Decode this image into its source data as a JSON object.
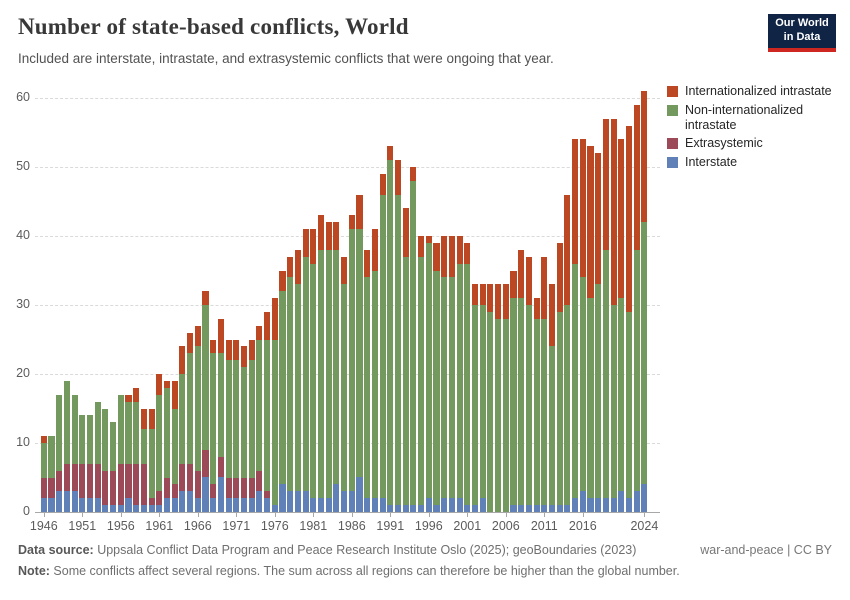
{
  "header": {
    "title": "Number of state-based conflicts, World",
    "subtitle": "Included are interstate, intrastate, and extrasystemic conflicts that were ongoing that year."
  },
  "logo": {
    "line1": "Our World",
    "line2": "in Data",
    "bg": "#102446",
    "accent": "#CE2620"
  },
  "legend": {
    "items": [
      {
        "label": "Internationalized intrastate",
        "color": "#BC4823"
      },
      {
        "label": "Non-internationalized intrastate",
        "color": "#74995F"
      },
      {
        "label": "Extrasystemic",
        "color": "#9C4A57"
      },
      {
        "label": "Interstate",
        "color": "#6080B8"
      }
    ]
  },
  "chart_data": {
    "type": "bar",
    "stacked": true,
    "title": "Number of state-based conflicts, World",
    "xlabel": "",
    "ylabel": "",
    "ylim": [
      0,
      60
    ],
    "yticks": [
      0,
      10,
      20,
      30,
      40,
      50,
      60
    ],
    "grid": "horizontal-dashed",
    "legend_position": "right",
    "xticks": [
      1946,
      1951,
      1956,
      1961,
      1966,
      1971,
      1976,
      1981,
      1986,
      1991,
      1996,
      2001,
      2006,
      2011,
      2016,
      2024
    ],
    "x": [
      1946,
      1947,
      1948,
      1949,
      1950,
      1951,
      1952,
      1953,
      1954,
      1955,
      1956,
      1957,
      1958,
      1959,
      1960,
      1961,
      1962,
      1963,
      1964,
      1965,
      1966,
      1967,
      1968,
      1969,
      1970,
      1971,
      1972,
      1973,
      1974,
      1975,
      1976,
      1977,
      1978,
      1979,
      1980,
      1981,
      1982,
      1983,
      1984,
      1985,
      1986,
      1987,
      1988,
      1989,
      1990,
      1991,
      1992,
      1993,
      1994,
      1995,
      1996,
      1997,
      1998,
      1999,
      2000,
      2001,
      2002,
      2003,
      2004,
      2005,
      2006,
      2007,
      2008,
      2009,
      2010,
      2011,
      2012,
      2013,
      2014,
      2015,
      2016,
      2017,
      2018,
      2019,
      2020,
      2021,
      2022,
      2023,
      2024
    ],
    "series": [
      {
        "name": "Interstate",
        "color": "#6080B8",
        "values": [
          2,
          2,
          3,
          3,
          3,
          2,
          2,
          2,
          1,
          1,
          1,
          2,
          1,
          1,
          1,
          1,
          2,
          2,
          3,
          3,
          2,
          5,
          2,
          5,
          2,
          2,
          2,
          2,
          3,
          2,
          1,
          4,
          3,
          3,
          3,
          2,
          2,
          2,
          4,
          3,
          3,
          5,
          2,
          2,
          2,
          1,
          1,
          1,
          1,
          1,
          2,
          1,
          2,
          2,
          2,
          1,
          1,
          2,
          0,
          0,
          0,
          1,
          1,
          1,
          1,
          1,
          1,
          1,
          1,
          2,
          3,
          2,
          2,
          2,
          2,
          3,
          2,
          3,
          4
        ]
      },
      {
        "name": "Extrasystemic",
        "color": "#9C4A57",
        "values": [
          3,
          3,
          3,
          4,
          4,
          5,
          5,
          5,
          5,
          5,
          6,
          5,
          6,
          6,
          1,
          2,
          3,
          2,
          4,
          4,
          4,
          4,
          2,
          3,
          3,
          3,
          3,
          3,
          3,
          1,
          0,
          0,
          0,
          0,
          0,
          0,
          0,
          0,
          0,
          0,
          0,
          0,
          0,
          0,
          0,
          0,
          0,
          0,
          0,
          0,
          0,
          0,
          0,
          0,
          0,
          0,
          0,
          0,
          0,
          0,
          0,
          0,
          0,
          0,
          0,
          0,
          0,
          0,
          0,
          0,
          0,
          0,
          0,
          0,
          0,
          0,
          0,
          0,
          0
        ]
      },
      {
        "name": "Non-internationalized intrastate",
        "color": "#74995F",
        "values": [
          5,
          6,
          11,
          12,
          10,
          7,
          7,
          9,
          9,
          7,
          10,
          9,
          9,
          5,
          10,
          14,
          13,
          11,
          13,
          16,
          18,
          21,
          19,
          15,
          17,
          17,
          16,
          17,
          19,
          22,
          24,
          28,
          31,
          30,
          34,
          34,
          36,
          36,
          34,
          30,
          38,
          36,
          32,
          33,
          44,
          50,
          45,
          36,
          47,
          36,
          37,
          34,
          32,
          32,
          34,
          35,
          29,
          28,
          29,
          28,
          28,
          30,
          30,
          29,
          27,
          27,
          23,
          28,
          29,
          34,
          31,
          29,
          31,
          36,
          28,
          28,
          27,
          35,
          38
        ]
      },
      {
        "name": "Internationalized intrastate",
        "color": "#BC4823",
        "values": [
          1,
          0,
          0,
          0,
          0,
          0,
          0,
          0,
          0,
          0,
          0,
          1,
          2,
          3,
          3,
          3,
          1,
          4,
          4,
          3,
          3,
          2,
          2,
          5,
          3,
          3,
          3,
          3,
          2,
          4,
          6,
          3,
          3,
          5,
          4,
          5,
          5,
          4,
          4,
          4,
          2,
          5,
          4,
          6,
          3,
          2,
          5,
          7,
          2,
          3,
          1,
          4,
          6,
          6,
          4,
          3,
          3,
          3,
          4,
          5,
          5,
          4,
          7,
          7,
          3,
          9,
          9,
          10,
          16,
          18,
          20,
          22,
          19,
          19,
          27,
          23,
          27,
          21,
          19
        ]
      }
    ]
  },
  "footer": {
    "source_label": "Data source:",
    "source_text": " Uppsala Conflict Data Program and Peace Research Institute Oslo (2025); geoBoundaries (2023)",
    "credit": "war-and-peace | CC BY",
    "note_label": "Note:",
    "note_text": " Some conflicts affect several regions. The sum across all regions can therefore be higher than the global number."
  }
}
